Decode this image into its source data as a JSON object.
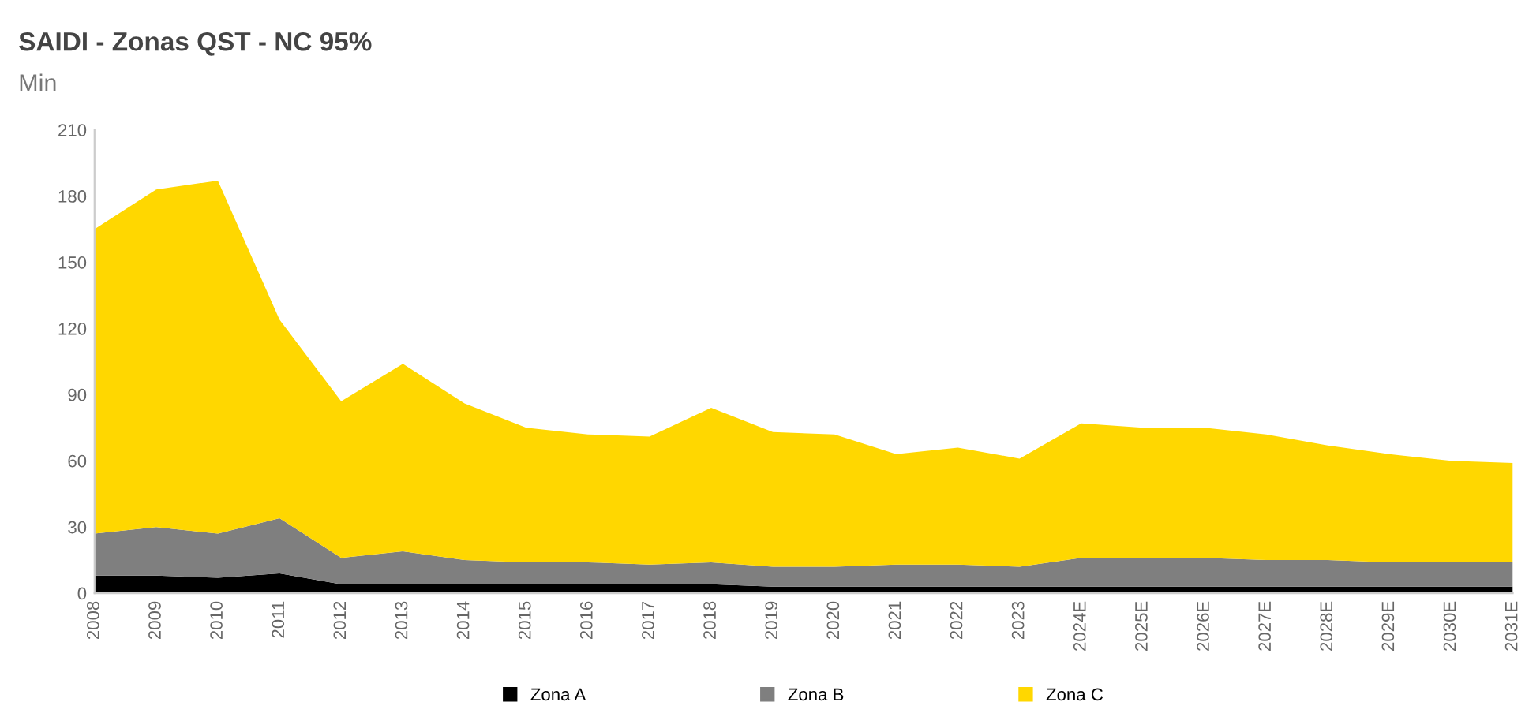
{
  "chart_data": {
    "type": "area",
    "stacked": true,
    "title": "SAIDI - Zonas QST - NC 95%",
    "ylabel": "Min",
    "categories": [
      "2008",
      "2009",
      "2010",
      "2011",
      "2012",
      "2013",
      "2014",
      "2015",
      "2016",
      "2017",
      "2018",
      "2019",
      "2020",
      "2021",
      "2022",
      "2023",
      "2024E",
      "2025E",
      "2026E",
      "2027E",
      "2028E",
      "2029E",
      "2030E",
      "2031E"
    ],
    "series": [
      {
        "name": "Zona A",
        "color": "#000000",
        "values": [
          8,
          8,
          7,
          9,
          4,
          4,
          4,
          4,
          4,
          4,
          4,
          3,
          3,
          3,
          3,
          3,
          3,
          3,
          3,
          3,
          3,
          3,
          3,
          3
        ]
      },
      {
        "name": "Zona B",
        "color": "#7f7f7f",
        "values": [
          19,
          22,
          20,
          25,
          12,
          15,
          11,
          10,
          10,
          9,
          10,
          9,
          9,
          10,
          10,
          9,
          13,
          13,
          13,
          12,
          12,
          11,
          11,
          11
        ]
      },
      {
        "name": "Zona C",
        "color": "#ffd700",
        "values": [
          138,
          153,
          160,
          90,
          71,
          85,
          71,
          61,
          58,
          58,
          70,
          61,
          60,
          50,
          53,
          49,
          61,
          59,
          59,
          57,
          52,
          49,
          46,
          45
        ]
      }
    ],
    "ylim": [
      0,
      210
    ],
    "yticks": [
      0,
      30,
      60,
      90,
      120,
      150,
      180,
      210
    ],
    "grid": false,
    "legend": "bottom"
  }
}
